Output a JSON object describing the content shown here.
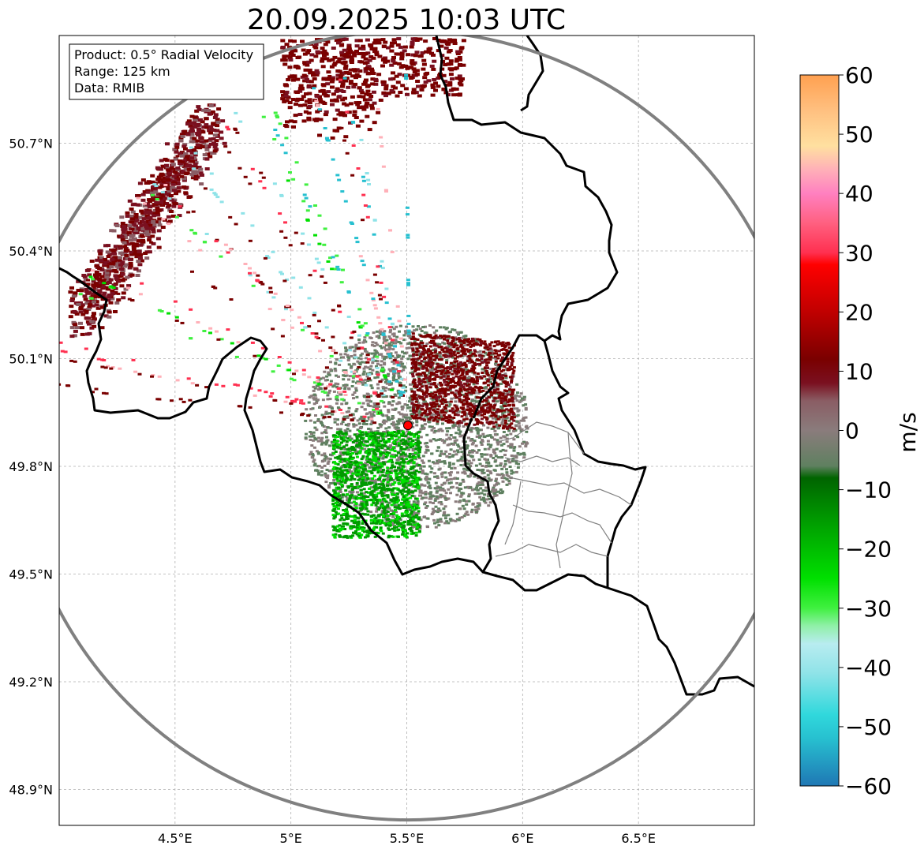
{
  "title": "20.09.2025 10:03 UTC",
  "info_box": {
    "product": "Product: 0.5° Radial Velocity",
    "range": "Range: 125 km",
    "data": "Data: RMIB"
  },
  "axes": {
    "lon_ticks": [
      "4.5°E",
      "5°E",
      "5.5°E",
      "6°E",
      "6.5°E"
    ],
    "lat_ticks": [
      "50.7°N",
      "50.4°N",
      "50.1°N",
      "49.8°N",
      "49.5°N",
      "49.2°N",
      "48.9°N"
    ],
    "lon_values": [
      4.5,
      5.0,
      5.5,
      6.0,
      6.5
    ],
    "lat_values": [
      50.7,
      50.4,
      50.1,
      49.8,
      49.5,
      49.2,
      48.9
    ],
    "lon_range": [
      4.0,
      7.0
    ],
    "lat_range": [
      48.8,
      51.0
    ]
  },
  "radar_site": {
    "lon": 5.505,
    "lat": 49.914
  },
  "colorbar": {
    "label": "m/s",
    "min": -60,
    "max": 60,
    "ticks": [
      "60",
      "50",
      "40",
      "30",
      "20",
      "10",
      "0",
      "−10",
      "−20",
      "−30",
      "−40",
      "−50",
      "−60"
    ],
    "tick_values": [
      60,
      50,
      40,
      30,
      20,
      10,
      0,
      -10,
      -20,
      -30,
      -40,
      -50,
      -60
    ],
    "stops": [
      {
        "v": -60,
        "color": "#1f77b4"
      },
      {
        "v": -52,
        "color": "#27c0d0"
      },
      {
        "v": -48,
        "color": "#30d8dc"
      },
      {
        "v": -41,
        "color": "#8fe3e8"
      },
      {
        "v": -36,
        "color": "#b8ecf0"
      },
      {
        "v": -33,
        "color": "#90f0a8"
      },
      {
        "v": -30,
        "color": "#40f040"
      },
      {
        "v": -25,
        "color": "#00e000"
      },
      {
        "v": -15,
        "color": "#009a00"
      },
      {
        "v": -8,
        "color": "#006400"
      },
      {
        "v": -6,
        "color": "#5f8060"
      },
      {
        "v": 0,
        "color": "#8a7c7c"
      },
      {
        "v": 5,
        "color": "#8a5d64"
      },
      {
        "v": 8,
        "color": "#7a1020"
      },
      {
        "v": 12,
        "color": "#7a0000"
      },
      {
        "v": 20,
        "color": "#c00000"
      },
      {
        "v": 28,
        "color": "#ff0000"
      },
      {
        "v": 30,
        "color": "#ff3050"
      },
      {
        "v": 35,
        "color": "#ff6080"
      },
      {
        "v": 40,
        "color": "#ff80c0"
      },
      {
        "v": 44,
        "color": "#ffb0b8"
      },
      {
        "v": 48,
        "color": "#ffe0a0"
      },
      {
        "v": 54,
        "color": "#ffc080"
      },
      {
        "v": 60,
        "color": "#ffa050"
      }
    ]
  },
  "colors": {
    "range_ring": "#808080",
    "border": "#000000",
    "province": "#808080",
    "radar_marker": "#ff0000"
  }
}
